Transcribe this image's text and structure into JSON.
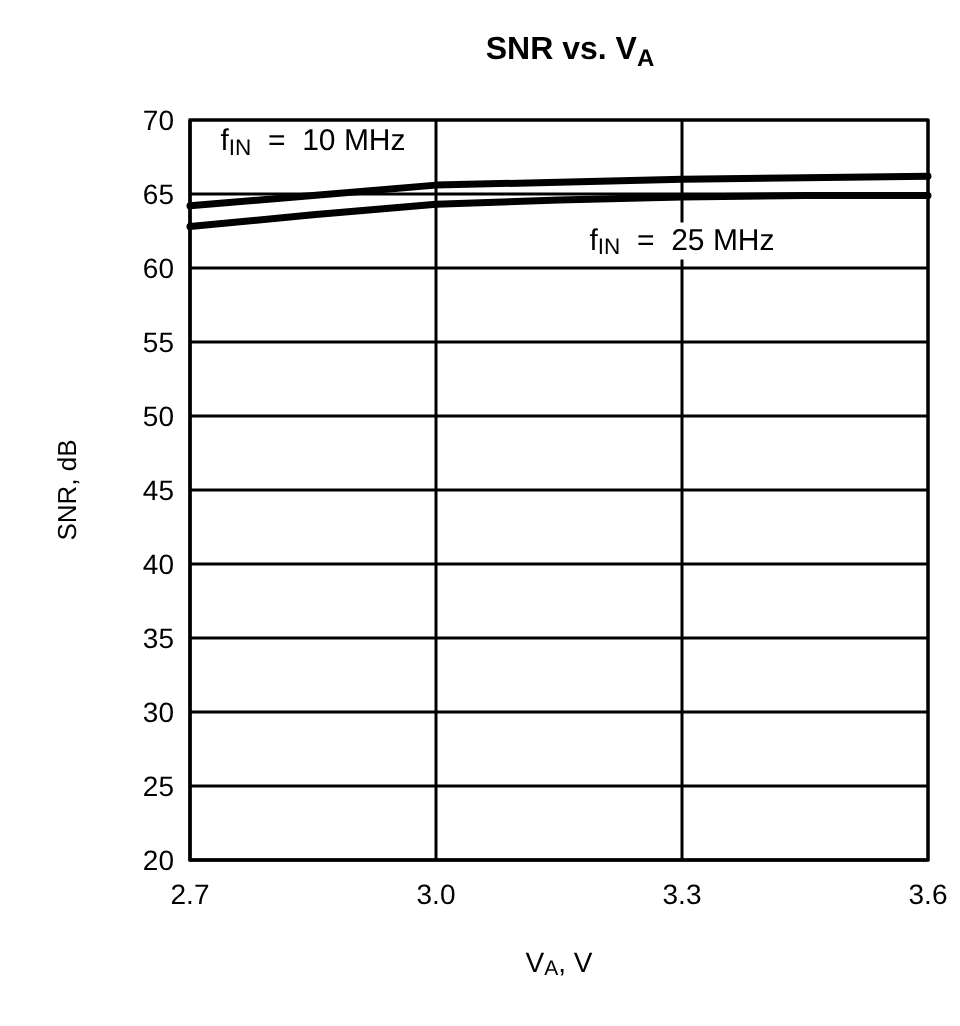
{
  "chart_data": {
    "type": "line",
    "title": "SNR vs. V$_{A}$",
    "xlabel": "V$_{A}$, V",
    "ylabel": "SNR, dB",
    "x": [
      2.7,
      2.85,
      3.0,
      3.15,
      3.3,
      3.45,
      3.6
    ],
    "series": [
      {
        "name": "f$_{IN}$  =  10 MHz",
        "color": "#000000",
        "values": [
          64.2,
          64.9,
          65.6,
          65.8,
          66.0,
          66.1,
          66.2
        ]
      },
      {
        "name": "f$_{IN}$  =  25 MHz",
        "color": "#000000",
        "values": [
          62.8,
          63.6,
          64.3,
          64.6,
          64.8,
          64.9,
          64.9
        ]
      }
    ],
    "xlim": [
      2.7,
      3.6
    ],
    "ylim": [
      20,
      70
    ],
    "xticks": [
      {
        "value": 2.7,
        "label": "2.7"
      },
      {
        "value": 3.0,
        "label": "3.0"
      },
      {
        "value": 3.3,
        "label": "3.3"
      },
      {
        "value": 3.6,
        "label": "3.6"
      }
    ],
    "yticks": [
      20,
      25,
      30,
      35,
      40,
      45,
      50,
      55,
      60,
      65,
      70
    ],
    "grid": true,
    "marker": "none",
    "line_style": "solid"
  }
}
